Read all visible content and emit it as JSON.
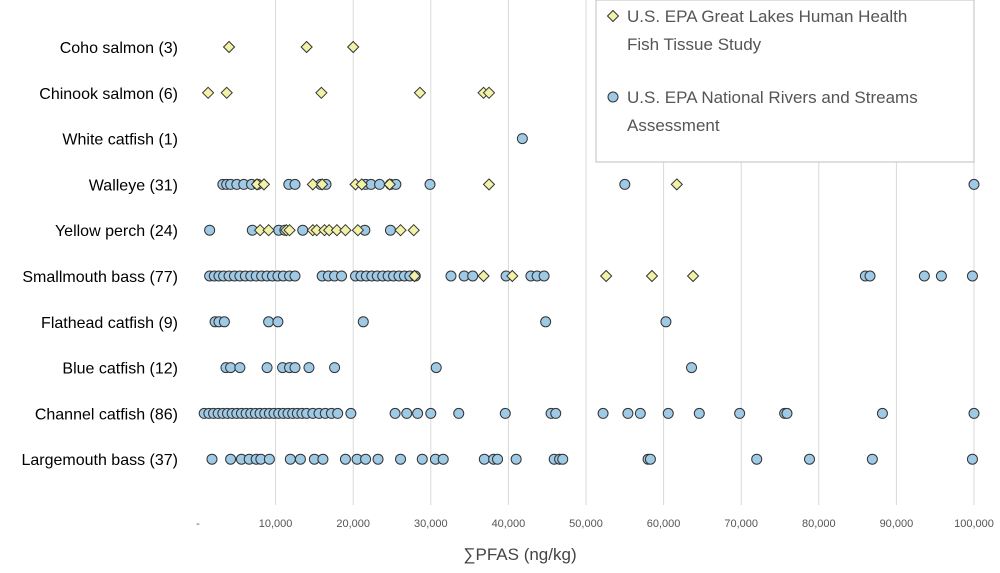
{
  "chart_data": {
    "type": "scatter",
    "title": "",
    "xlabel": "∑PFAS (ng/kg)",
    "ylabel": "",
    "xlim": [
      0,
      100000
    ],
    "xticks": [
      "-",
      "10,000",
      "20,000",
      "30,000",
      "40,000",
      "50,000",
      "60,000",
      "70,000",
      "80,000",
      "90,000",
      "100,000"
    ],
    "grid": "vertical",
    "legend_position": "top-right",
    "categories": [
      "Coho salmon (3)",
      "Chinook salmon (6)",
      "White catfish (1)",
      "Walleye (31)",
      "Yellow perch (24)",
      "Smallmouth bass (77)",
      "Flathead catfish (9)",
      "Blue catfish (12)",
      "Channel catfish (86)",
      "Largemouth bass (37)"
    ],
    "series": [
      {
        "name": "U.S. EPA Great Lakes Human Health Fish Tissue Study",
        "legend_lines": [
          "U.S. EPA Great Lakes Human Health",
          "Fish Tissue Study"
        ],
        "marker": "diamond",
        "color": "#f2f2a6",
        "edge_color": "#333333",
        "points": {
          "Coho salmon (3)": [
            4000,
            14000,
            20000
          ],
          "Chinook salmon (6)": [
            1300,
            3700,
            15900,
            28600,
            36800,
            37500
          ],
          "White catfish (1)": [],
          "Walleye (31)": [
            7600,
            8500,
            14800,
            16000,
            20300,
            21100,
            24700,
            37500,
            61700
          ],
          "Yellow perch (24)": [
            8000,
            9100,
            11400,
            11800,
            14800,
            15300,
            16300,
            16900,
            17900,
            19000,
            20600,
            26100,
            27800
          ],
          "Smallmouth bass (77)": [
            27900,
            36800,
            40500,
            52600,
            58500,
            63800
          ],
          "Flathead catfish (9)": [],
          "Blue catfish (12)": [],
          "Channel catfish (86)": [],
          "Largemouth bass (37)": []
        }
      },
      {
        "name": "U.S. EPA National Rivers and Streams Assessment",
        "legend_lines": [
          "U.S. EPA National Rivers and Streams",
          "Assessment"
        ],
        "marker": "circle",
        "color": "#9ecae6",
        "edge_color": "#333333",
        "points": {
          "Coho salmon (3)": [],
          "Chinook salmon (6)": [],
          "White catfish (1)": [
            41800
          ],
          "Walleye (31)": [
            3200,
            3700,
            4200,
            5000,
            5900,
            6900,
            7700,
            11700,
            12500,
            15800,
            16500,
            21600,
            22300,
            23400,
            24800,
            25500,
            29900,
            55000,
            100000
          ],
          "Yellow perch (24)": [
            1500,
            7000,
            10400,
            11200,
            13500,
            21500,
            24800
          ],
          "Smallmouth bass (77)": [
            1500,
            2100,
            2700,
            3300,
            4000,
            4700,
            5400,
            6100,
            6800,
            7500,
            8200,
            8900,
            9600,
            10300,
            11000,
            11800,
            12500,
            16000,
            16800,
            17600,
            18500,
            20300,
            21000,
            21700,
            22400,
            23100,
            23800,
            24500,
            25200,
            25900,
            26600,
            27300,
            28000,
            32600,
            34300,
            35400,
            39700,
            42900,
            43700,
            44600,
            86000,
            86600,
            93600,
            95800,
            99800
          ],
          "Flathead catfish (9)": [
            2200,
            2700,
            3400,
            9100,
            10300,
            21300,
            44800,
            60300
          ],
          "Blue catfish (12)": [
            3600,
            4200,
            5400,
            8900,
            10900,
            11800,
            12500,
            14300,
            17600,
            30700,
            63600
          ],
          "Channel catfish (86)": [
            800,
            1400,
            2000,
            2600,
            3200,
            3800,
            4400,
            5000,
            5600,
            6200,
            6800,
            7400,
            8000,
            8600,
            9200,
            9800,
            10400,
            11000,
            11600,
            12200,
            12800,
            13400,
            14000,
            14800,
            15600,
            16400,
            17200,
            18000,
            19700,
            25400,
            26900,
            28300,
            30000,
            33600,
            39600,
            45500,
            46100,
            52200,
            55400,
            57000,
            60600,
            64600,
            69800,
            75600,
            75900,
            88200,
            100000
          ],
          "Largemouth bass (37)": [
            1800,
            4200,
            5600,
            6600,
            7500,
            8100,
            9200,
            11900,
            13200,
            15000,
            16100,
            19000,
            20500,
            21600,
            23200,
            26100,
            28900,
            30600,
            31600,
            36900,
            38100,
            38600,
            41000,
            45900,
            46600,
            47000,
            58000,
            58300,
            72000,
            78800,
            86900,
            99800
          ]
        }
      }
    ]
  }
}
